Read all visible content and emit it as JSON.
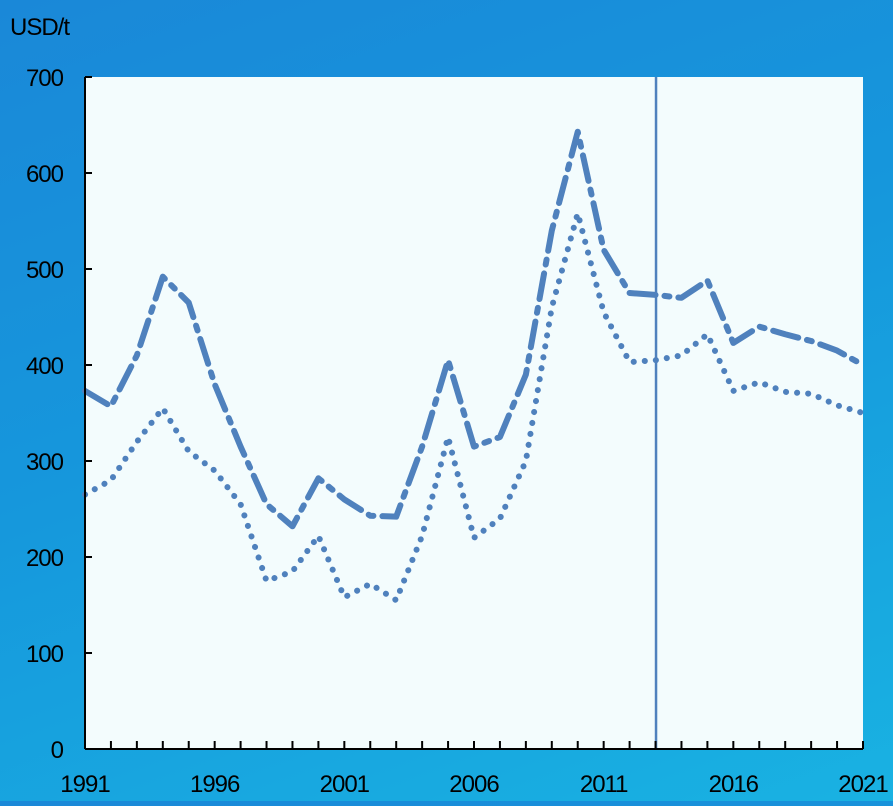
{
  "chart_data": {
    "type": "line",
    "title": "",
    "ylabel": "USD/t",
    "xlabel": "",
    "x": [
      1991,
      1992,
      1993,
      1994,
      1995,
      1996,
      1997,
      1998,
      1999,
      2000,
      2001,
      2002,
      2003,
      2004,
      2005,
      2006,
      2007,
      2008,
      2009,
      2010,
      2011,
      2012,
      2013,
      2014,
      2015,
      2016,
      2017,
      2018,
      2019,
      2020,
      2021
    ],
    "xlim": [
      1991,
      2021
    ],
    "ylim": [
      0,
      700
    ],
    "x_ticks": [
      "1991",
      "1996",
      "2001",
      "2006",
      "2011",
      "2016",
      "2021"
    ],
    "y_ticks": [
      "0",
      "100",
      "200",
      "300",
      "400",
      "500",
      "600",
      "700"
    ],
    "series": [
      {
        "style": "dash-dot",
        "color": "#4f81bd",
        "values": [
          373,
          357,
          410,
          492,
          465,
          380,
          315,
          255,
          232,
          282,
          260,
          243,
          242,
          315,
          405,
          315,
          325,
          390,
          540,
          643,
          520,
          475,
          473,
          470,
          488,
          423,
          440,
          432,
          425,
          415,
          400
        ]
      },
      {
        "style": "dotted",
        "color": "#4f81bd",
        "values": [
          265,
          280,
          320,
          355,
          310,
          290,
          255,
          175,
          185,
          222,
          158,
          172,
          155,
          222,
          325,
          220,
          240,
          300,
          460,
          558,
          455,
          403,
          405,
          410,
          432,
          373,
          382,
          372,
          370,
          358,
          350
        ]
      }
    ],
    "vertical_marker_x": 2013,
    "grid": false,
    "legend": "none",
    "plot_background": "#f3fcfd",
    "axis_color": "#000000"
  }
}
